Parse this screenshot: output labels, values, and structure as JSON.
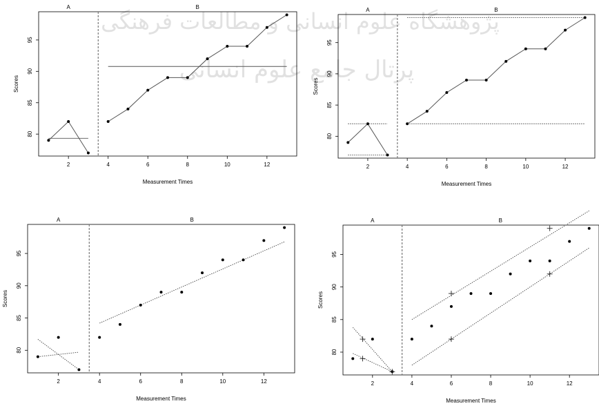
{
  "watermark": {
    "line1": "پژوهشگاه علوم انسانی و مطالعات فرهنگی",
    "line2": "پرتال جامع علوم انسانی"
  },
  "chart_data": [
    {
      "type": "line",
      "phase_labels": [
        "A",
        "B"
      ],
      "xlabel": "Measurement Times",
      "ylabel": "Scores",
      "x": [
        1,
        2,
        3,
        4,
        5,
        6,
        7,
        8,
        9,
        10,
        11,
        12,
        13
      ],
      "y": [
        79,
        82,
        77,
        82,
        84,
        87,
        89,
        89,
        92,
        94,
        94,
        97,
        99
      ],
      "phase_change_at": 3.5,
      "xlim": [
        0.5,
        13.5
      ],
      "ylim": [
        76.5,
        99.5
      ],
      "xticks": [
        2,
        4,
        6,
        8,
        10,
        12
      ],
      "yticks": [
        80,
        85,
        90,
        95
      ],
      "reference_lines": [
        {
          "x": [
            1,
            3
          ],
          "y": [
            79.33,
            79.33
          ],
          "style": "solid"
        },
        {
          "x": [
            4,
            13
          ],
          "y": [
            90.78,
            90.78
          ],
          "style": "solid"
        }
      ]
    },
    {
      "type": "line",
      "phase_labels": [
        "A",
        "B"
      ],
      "xlabel": "Measurement Times",
      "ylabel": "Scores",
      "x": [
        1,
        2,
        3,
        4,
        5,
        6,
        7,
        8,
        9,
        10,
        11,
        12,
        13
      ],
      "y": [
        79,
        82,
        77,
        82,
        84,
        87,
        89,
        89,
        92,
        94,
        94,
        97,
        99
      ],
      "phase_change_at": 3.5,
      "xlim": [
        0.5,
        13.5
      ],
      "ylim": [
        76.5,
        99.5
      ],
      "xticks": [
        2,
        4,
        6,
        8,
        10,
        12
      ],
      "yticks": [
        80,
        85,
        90,
        95
      ],
      "reference_lines": [
        {
          "x": [
            1,
            3
          ],
          "y": [
            82,
            82
          ],
          "style": "dotted"
        },
        {
          "x": [
            1,
            3
          ],
          "y": [
            77,
            77
          ],
          "style": "dotted"
        },
        {
          "x": [
            4,
            13
          ],
          "y": [
            99,
            99
          ],
          "style": "dotted"
        },
        {
          "x": [
            4,
            13
          ],
          "y": [
            82,
            82
          ],
          "style": "dotted"
        }
      ]
    },
    {
      "type": "scatter",
      "phase_labels": [
        "A",
        "B"
      ],
      "xlabel": "Measurement Times",
      "ylabel": "Scores",
      "x": [
        1,
        2,
        3,
        4,
        5,
        6,
        7,
        8,
        9,
        10,
        11,
        12,
        13
      ],
      "y": [
        79,
        82,
        77,
        82,
        84,
        87,
        89,
        89,
        92,
        94,
        94,
        97,
        99
      ],
      "phase_change_at": 3.5,
      "xlim": [
        0.5,
        13.5
      ],
      "ylim": [
        76.5,
        99.5
      ],
      "xticks": [
        2,
        4,
        6,
        8,
        10,
        12
      ],
      "yticks": [
        80,
        85,
        90,
        95
      ],
      "reference_lines": [
        {
          "x": [
            1,
            3
          ],
          "y": [
            79,
            79.7
          ],
          "style": "dotted"
        },
        {
          "x": [
            1,
            3
          ],
          "y": [
            81.7,
            77
          ],
          "style": "dotted"
        },
        {
          "x": [
            4,
            13
          ],
          "y": [
            84.2,
            96.8
          ],
          "style": "dotted"
        }
      ]
    },
    {
      "type": "scatter",
      "phase_labels": [
        "A",
        "B"
      ],
      "xlabel": "Measurement Times",
      "ylabel": "Scores",
      "x": [
        1,
        2,
        3,
        4,
        5,
        6,
        7,
        8,
        9,
        10,
        11,
        12,
        13
      ],
      "y": [
        79,
        82,
        77,
        82,
        84,
        87,
        89,
        89,
        92,
        94,
        94,
        97,
        99
      ],
      "phase_change_at": 3.5,
      "xlim": [
        0.5,
        13.5
      ],
      "ylim": [
        76.5,
        99.5
      ],
      "xticks": [
        2,
        4,
        6,
        8,
        10,
        12
      ],
      "yticks": [
        80,
        85,
        90,
        95
      ],
      "cross_markers": [
        {
          "x": 1.5,
          "y": 82
        },
        {
          "x": 1.5,
          "y": 79
        },
        {
          "x": 3,
          "y": 77
        },
        {
          "x": 6,
          "y": 89
        },
        {
          "x": 6,
          "y": 82
        },
        {
          "x": 11,
          "y": 99
        },
        {
          "x": 11,
          "y": 92
        }
      ],
      "reference_lines": [
        {
          "x": [
            1,
            3
          ],
          "y": [
            83.8,
            77
          ],
          "style": "dotted"
        },
        {
          "x": [
            1,
            3
          ],
          "y": [
            79.8,
            77
          ],
          "style": "dotted"
        },
        {
          "x": [
            4,
            13
          ],
          "y": [
            85,
            101.7
          ],
          "style": "dotted"
        },
        {
          "x": [
            4,
            13
          ],
          "y": [
            78,
            96
          ],
          "style": "dotted"
        }
      ]
    }
  ]
}
